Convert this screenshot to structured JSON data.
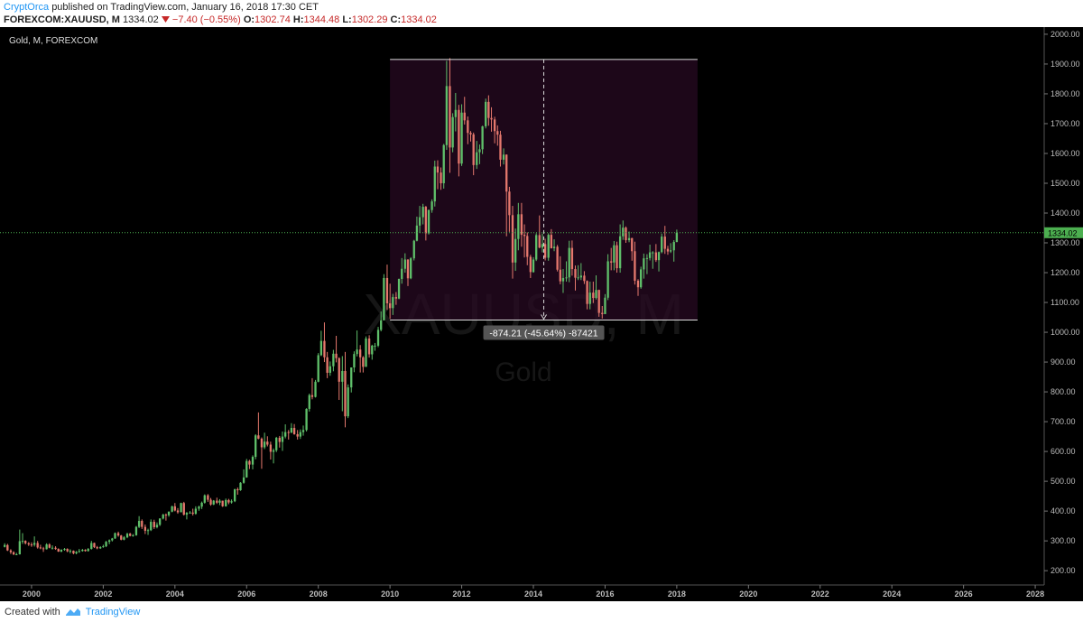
{
  "header": {
    "author": "CryptOrca",
    "published": "published on TradingView.com, January 16, 2018 17:30 CET",
    "symbol": "FOREXCOM:XAUUSD, M",
    "price": 1334.02,
    "change": "−7.40 (−0.55%)",
    "ohlc": [
      {
        "label": "O:",
        "value": 1302.74
      },
      {
        "label": "H:",
        "value": 1344.48
      },
      {
        "label": "L:",
        "value": 1302.29
      },
      {
        "label": "C:",
        "value": 1334.02
      }
    ]
  },
  "footer": {
    "created": "Created with",
    "brand": "TradingView"
  },
  "chart_data": {
    "type": "candlestick",
    "title": "Gold, M, FOREXCOM",
    "watermark": {
      "symbol": "XAUUSD, M",
      "name": "Gold"
    },
    "up_color": "#5fbf6a",
    "down_color": "#e5786d",
    "last_price_color": "#4caf50",
    "xlim": [
      1999.12,
      2028.25
    ],
    "xticks": [
      2000,
      2002,
      2004,
      2006,
      2008,
      2010,
      2012,
      2014,
      2016,
      2018,
      2020,
      2022,
      2024,
      2026,
      2028
    ],
    "ylim": [
      152,
      2024
    ],
    "yticks": [
      {
        "value": 200,
        "label": "200.00"
      },
      {
        "value": 300,
        "label": "300.00"
      },
      {
        "value": 400,
        "label": "400.00"
      },
      {
        "value": 500,
        "label": "500.00"
      },
      {
        "value": 600,
        "label": "600.00"
      },
      {
        "value": 700,
        "label": "700.00"
      },
      {
        "value": 800,
        "label": "800.00"
      },
      {
        "value": 900,
        "label": "900.00"
      },
      {
        "value": 1000,
        "label": "1000.00"
      },
      {
        "value": 1100,
        "label": "1100.00"
      },
      {
        "value": 1200,
        "label": "1200.00"
      },
      {
        "value": 1300,
        "label": "1300.00"
      },
      {
        "value": 1400,
        "label": "1400.00"
      },
      {
        "value": 1500,
        "label": "1500.00"
      },
      {
        "value": 1600,
        "label": "1600.00"
      },
      {
        "value": 1700,
        "label": "1700.00"
      },
      {
        "value": 1800,
        "label": "1800.00"
      },
      {
        "value": 1900,
        "label": "1900.00"
      },
      {
        "value": 2000,
        "label": "2000.00"
      }
    ],
    "last_price": 1334.02,
    "measure": {
      "top": 1915.42,
      "bottom": 1041.21,
      "x_start": 2010,
      "x_end": 2018.58,
      "label": "-874.21 (-45.64%) -87421"
    },
    "x": [
      1999.25,
      1999.33,
      1999.42,
      1999.5,
      1999.58,
      1999.67,
      1999.75,
      1999.83,
      1999.92,
      2000,
      2000.08,
      2000.17,
      2000.25,
      2000.33,
      2000.42,
      2000.5,
      2000.58,
      2000.67,
      2000.75,
      2000.83,
      2000.92,
      2001,
      2001.08,
      2001.17,
      2001.25,
      2001.33,
      2001.42,
      2001.5,
      2001.58,
      2001.67,
      2001.75,
      2001.83,
      2001.92,
      2002,
      2002.08,
      2002.17,
      2002.25,
      2002.33,
      2002.42,
      2002.5,
      2002.58,
      2002.67,
      2002.75,
      2002.83,
      2002.92,
      2003,
      2003.08,
      2003.17,
      2003.25,
      2003.33,
      2003.42,
      2003.5,
      2003.58,
      2003.67,
      2003.75,
      2003.83,
      2003.92,
      2004,
      2004.08,
      2004.17,
      2004.25,
      2004.33,
      2004.42,
      2004.5,
      2004.58,
      2004.67,
      2004.75,
      2004.83,
      2004.92,
      2005,
      2005.08,
      2005.17,
      2005.25,
      2005.33,
      2005.42,
      2005.5,
      2005.58,
      2005.67,
      2005.75,
      2005.83,
      2005.92,
      2006,
      2006.08,
      2006.17,
      2006.25,
      2006.33,
      2006.42,
      2006.5,
      2006.58,
      2006.67,
      2006.75,
      2006.83,
      2006.92,
      2007,
      2007.08,
      2007.17,
      2007.25,
      2007.33,
      2007.42,
      2007.5,
      2007.58,
      2007.67,
      2007.75,
      2007.83,
      2007.92,
      2008,
      2008.08,
      2008.17,
      2008.25,
      2008.33,
      2008.42,
      2008.5,
      2008.58,
      2008.67,
      2008.75,
      2008.83,
      2008.92,
      2009,
      2009.08,
      2009.17,
      2009.25,
      2009.33,
      2009.42,
      2009.5,
      2009.58,
      2009.67,
      2009.75,
      2009.83,
      2009.92,
      2010,
      2010.08,
      2010.17,
      2010.25,
      2010.33,
      2010.42,
      2010.5,
      2010.58,
      2010.67,
      2010.75,
      2010.83,
      2010.92,
      2011,
      2011.08,
      2011.17,
      2011.25,
      2011.33,
      2011.42,
      2011.5,
      2011.58,
      2011.67,
      2011.75,
      2011.83,
      2011.92,
      2012,
      2012.08,
      2012.17,
      2012.25,
      2012.33,
      2012.42,
      2012.5,
      2012.58,
      2012.67,
      2012.75,
      2012.83,
      2012.92,
      2013,
      2013.08,
      2013.17,
      2013.25,
      2013.33,
      2013.42,
      2013.5,
      2013.58,
      2013.67,
      2013.75,
      2013.83,
      2013.92,
      2014,
      2014.08,
      2014.17,
      2014.25,
      2014.33,
      2014.42,
      2014.5,
      2014.58,
      2014.67,
      2014.75,
      2014.83,
      2014.92,
      2015,
      2015.08,
      2015.17,
      2015.25,
      2015.33,
      2015.42,
      2015.5,
      2015.58,
      2015.67,
      2015.75,
      2015.83,
      2015.92,
      2016,
      2016.08,
      2016.17,
      2016.25,
      2016.33,
      2016.42,
      2016.5,
      2016.58,
      2016.67,
      2016.75,
      2016.83,
      2016.92,
      2017,
      2017.08,
      2017.17,
      2017.25,
      2017.33,
      2017.42,
      2017.5,
      2017.58,
      2017.67,
      2017.75,
      2017.83,
      2017.92,
      2018
    ],
    "open": [
      280,
      286,
      268,
      262,
      255,
      255,
      299,
      300,
      292,
      288,
      287,
      293,
      278,
      275,
      272,
      288,
      277,
      277,
      273,
      264,
      270,
      273,
      265,
      267,
      258,
      263,
      266,
      270,
      266,
      273,
      293,
      279,
      275,
      279,
      282,
      297,
      302,
      308,
      326,
      318,
      304,
      312,
      324,
      317,
      319,
      347,
      367,
      347,
      334,
      336,
      364,
      346,
      354,
      375,
      388,
      386,
      398,
      416,
      402,
      396,
      427,
      388,
      394,
      395,
      391,
      408,
      415,
      428,
      453,
      438,
      422,
      435,
      428,
      435,
      416,
      437,
      429,
      433,
      473,
      470,
      495,
      513,
      568,
      556,
      582,
      654,
      643,
      614,
      633,
      623,
      599,
      604,
      646,
      632,
      650,
      665,
      663,
      679,
      658,
      650,
      665,
      672,
      743,
      789,
      783,
      834,
      923,
      971,
      916,
      864,
      886,
      928,
      913,
      834,
      870,
      718,
      815,
      882,
      927,
      942,
      916,
      884,
      979,
      926,
      955,
      955,
      1008,
      1040,
      1182,
      1097,
      1081,
      1118,
      1113,
      1179,
      1213,
      1244,
      1181,
      1248,
      1307,
      1358,
      1386,
      1421,
      1332,
      1410,
      1439,
      1556,
      1536,
      1500,
      1628,
      1826,
      1620,
      1722,
      1746,
      1566,
      1737,
      1711,
      1669,
      1664,
      1561,
      1604,
      1614,
      1691,
      1773,
      1719,
      1714,
      1675,
      1663,
      1579,
      1596,
      1472,
      1393,
      1234,
      1313,
      1396,
      1327,
      1323,
      1253,
      1202,
      1244,
      1326,
      1284,
      1296,
      1250,
      1327,
      1282,
      1287,
      1210,
      1171,
      1182,
      1184,
      1283,
      1212,
      1183,
      1184,
      1190,
      1172,
      1095,
      1133,
      1115,
      1142,
      1065,
      1061,
      1116,
      1238,
      1234,
      1292,
      1215,
      1322,
      1351,
      1309,
      1316,
      1272,
      1173,
      1151,
      1211,
      1248,
      1249,
      1268,
      1268,
      1242,
      1269,
      1321,
      1280,
      1271,
      1275,
      1302.74
    ],
    "high": [
      292,
      290,
      272,
      265,
      260,
      338,
      326,
      302,
      296,
      295,
      315,
      300,
      287,
      280,
      292,
      292,
      285,
      282,
      275,
      272,
      276,
      275,
      272,
      268,
      266,
      273,
      273,
      272,
      276,
      300,
      294,
      283,
      282,
      287,
      300,
      305,
      310,
      328,
      331,
      320,
      316,
      327,
      327,
      323,
      350,
      383,
      372,
      355,
      341,
      372,
      371,
      362,
      376,
      391,
      392,
      399,
      418,
      427,
      410,
      428,
      431,
      397,
      400,
      408,
      416,
      418,
      432,
      456,
      457,
      444,
      437,
      445,
      440,
      435,
      442,
      441,
      439,
      475,
      479,
      497,
      540,
      575,
      572,
      587,
      658,
      731,
      647,
      663,
      651,
      633,
      610,
      649,
      652,
      667,
      691,
      672,
      695,
      692,
      672,
      674,
      687,
      745,
      794,
      846,
      840,
      930,
      1005,
      1033,
      934,
      902,
      941,
      988,
      916,
      920,
      934,
      825,
      882,
      936,
      1006,
      957,
      920,
      986,
      990,
      958,
      964,
      1018,
      1070,
      1195,
      1227,
      1163,
      1129,
      1135,
      1180,
      1249,
      1265,
      1245,
      1252,
      1310,
      1388,
      1424,
      1431,
      1424,
      1412,
      1446,
      1576,
      1577,
      1553,
      1632,
      1911,
      1920,
      1735,
      1803,
      1763,
      1765,
      1790,
      1724,
      1675,
      1670,
      1642,
      1630,
      1693,
      1784,
      1795,
      1755,
      1723,
      1694,
      1676,
      1617,
      1597,
      1488,
      1424,
      1348,
      1434,
      1434,
      1362,
      1335,
      1260,
      1252,
      1332,
      1392,
      1331,
      1314,
      1332,
      1346,
      1312,
      1293,
      1255,
      1212,
      1238,
      1307,
      1308,
      1224,
      1225,
      1232,
      1205,
      1174,
      1170,
      1170,
      1191,
      1143,
      1088,
      1128,
      1262,
      1283,
      1306,
      1304,
      1362,
      1375,
      1355,
      1338,
      1317,
      1304,
      1178,
      1220,
      1264,
      1262,
      1294,
      1272,
      1296,
      1271,
      1331,
      1357,
      1290,
      1299,
      1309,
      1344.48
    ],
    "low": [
      278,
      266,
      256,
      252,
      252,
      254,
      290,
      288,
      283,
      280,
      281,
      274,
      272,
      263,
      271,
      275,
      271,
      270,
      263,
      262,
      267,
      262,
      258,
      255,
      255,
      260,
      264,
      264,
      264,
      271,
      276,
      272,
      273,
      277,
      279,
      289,
      298,
      307,
      314,
      302,
      302,
      309,
      315,
      314,
      317,
      343,
      340,
      323,
      320,
      333,
      340,
      342,
      350,
      372,
      368,
      381,
      396,
      399,
      391,
      396,
      385,
      372,
      391,
      385,
      388,
      401,
      407,
      425,
      431,
      418,
      420,
      424,
      420,
      414,
      415,
      423,
      425,
      430,
      455,
      468,
      492,
      512,
      541,
      540,
      574,
      641,
      542,
      608,
      617,
      573,
      560,
      598,
      613,
      602,
      644,
      640,
      662,
      656,
      640,
      642,
      653,
      667,
      734,
      775,
      781,
      832,
      920,
      900,
      846,
      854,
      869,
      899,
      773,
      735,
      681,
      712,
      798,
      866,
      919,
      865,
      865,
      884,
      915,
      908,
      938,
      950,
      1003,
      1040,
      1075,
      1045,
      1058,
      1092,
      1111,
      1163,
      1200,
      1155,
      1178,
      1241,
      1305,
      1333,
      1362,
      1308,
      1328,
      1401,
      1422,
      1480,
      1478,
      1482,
      1612,
      1535,
      1604,
      1674,
      1523,
      1558,
      1697,
      1631,
      1640,
      1527,
      1548,
      1564,
      1598,
      1684,
      1693,
      1673,
      1634,
      1626,
      1556,
      1563,
      1322,
      1337,
      1180,
      1206,
      1275,
      1287,
      1251,
      1225,
      1182,
      1200,
      1239,
      1282,
      1268,
      1241,
      1240,
      1281,
      1272,
      1204,
      1161,
      1132,
      1170,
      1168,
      1190,
      1140,
      1175,
      1175,
      1162,
      1077,
      1077,
      1098,
      1110,
      1052,
      1046,
      1061,
      1108,
      1208,
      1208,
      1200,
      1200,
      1310,
      1300,
      1302,
      1240,
      1160,
      1122,
      1146,
      1180,
      1195,
      1241,
      1213,
      1236,
      1204,
      1265,
      1263,
      1260,
      1266,
      1237,
      1302.29
    ],
    "close": [
      286,
      268,
      262,
      255,
      255,
      299,
      300,
      292,
      288,
      287,
      293,
      278,
      275,
      272,
      288,
      277,
      277,
      273,
      264,
      270,
      273,
      265,
      267,
      258,
      263,
      266,
      270,
      266,
      273,
      293,
      279,
      275,
      279,
      282,
      297,
      302,
      308,
      326,
      318,
      304,
      312,
      324,
      317,
      319,
      347,
      367,
      347,
      334,
      336,
      364,
      346,
      354,
      375,
      388,
      386,
      398,
      416,
      402,
      396,
      427,
      388,
      394,
      395,
      391,
      408,
      415,
      428,
      453,
      438,
      422,
      435,
      428,
      435,
      416,
      437,
      429,
      433,
      473,
      470,
      495,
      513,
      568,
      556,
      582,
      654,
      643,
      614,
      633,
      623,
      599,
      604,
      646,
      632,
      650,
      665,
      663,
      679,
      658,
      650,
      665,
      672,
      743,
      789,
      783,
      834,
      923,
      971,
      916,
      864,
      886,
      928,
      913,
      834,
      870,
      718,
      815,
      882,
      927,
      942,
      916,
      884,
      979,
      926,
      955,
      955,
      1008,
      1040,
      1182,
      1097,
      1081,
      1118,
      1113,
      1179,
      1213,
      1244,
      1181,
      1248,
      1307,
      1358,
      1386,
      1421,
      1332,
      1410,
      1439,
      1556,
      1536,
      1500,
      1628,
      1826,
      1620,
      1722,
      1746,
      1566,
      1737,
      1711,
      1669,
      1664,
      1561,
      1604,
      1614,
      1691,
      1773,
      1719,
      1714,
      1675,
      1663,
      1579,
      1596,
      1472,
      1393,
      1234,
      1313,
      1396,
      1327,
      1323,
      1253,
      1202,
      1244,
      1326,
      1284,
      1296,
      1250,
      1327,
      1282,
      1287,
      1210,
      1171,
      1182,
      1184,
      1283,
      1212,
      1183,
      1184,
      1190,
      1172,
      1095,
      1133,
      1115,
      1142,
      1065,
      1061,
      1116,
      1238,
      1234,
      1292,
      1215,
      1322,
      1351,
      1309,
      1316,
      1272,
      1173,
      1151,
      1211,
      1248,
      1249,
      1268,
      1268,
      1242,
      1269,
      1321,
      1280,
      1271,
      1275,
      1303,
      1334.02
    ]
  }
}
